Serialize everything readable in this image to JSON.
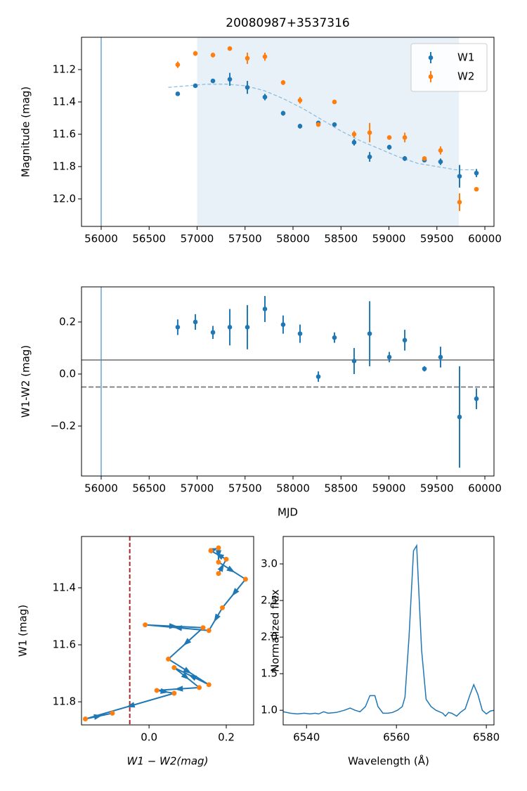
{
  "chart_data": [
    {
      "type": "errorbar",
      "title": "20080987+3537316",
      "ylabel": "Magnitude (mag)",
      "xlim": [
        55795,
        60095
      ],
      "ylim": [
        12.17,
        11.0
      ],
      "xticks": [
        56000,
        56500,
        57000,
        57500,
        58000,
        58500,
        59000,
        59500,
        60000
      ],
      "yticks": [
        11.2,
        11.4,
        11.6,
        11.8,
        {
          "value": 12,
          "label": "12.0"
        }
      ],
      "legend": "upper right",
      "vline": 56000,
      "vline_color": "#1f77b4",
      "span": [
        57000,
        59730
      ],
      "span_color": "#e8f0f8",
      "x": [
        56798,
        56982,
        57165,
        57341,
        57524,
        57707,
        57897,
        58073,
        58264,
        58432,
        58637,
        58799,
        59004,
        59165,
        59370,
        59538,
        59736,
        59912
      ],
      "series": [
        {
          "name": "W1",
          "color": "#1f77b4",
          "values": [
            11.35,
            11.3,
            11.27,
            11.26,
            11.31,
            11.37,
            11.47,
            11.55,
            11.53,
            11.54,
            11.65,
            11.74,
            11.68,
            11.75,
            11.76,
            11.77,
            11.86,
            11.84
          ],
          "errors": [
            0.005,
            0.005,
            0.01,
            0.04,
            0.04,
            0.02,
            0.015,
            0.015,
            0.01,
            0.01,
            0.02,
            0.03,
            0.015,
            0.015,
            0.01,
            0.02,
            0.07,
            0.025
          ]
        },
        {
          "name": "W2",
          "color": "#ff7f0e",
          "values": [
            11.17,
            11.1,
            11.11,
            11.07,
            11.13,
            11.12,
            11.28,
            11.39,
            11.54,
            11.4,
            11.6,
            11.59,
            11.62,
            11.62,
            11.75,
            11.7,
            12.02,
            11.94
          ],
          "errors": [
            0.02,
            0.015,
            0.015,
            0.005,
            0.035,
            0.025,
            0.015,
            0.02,
            0.01,
            0.005,
            0.02,
            0.06,
            0.005,
            0.03,
            0.01,
            0.025,
            0.055,
            0.005
          ]
        }
      ],
      "fit": {
        "color": "#8fbde0",
        "x": [
          56700,
          56900,
          57100,
          57300,
          57500,
          57700,
          57900,
          58100,
          58300,
          58500,
          58700,
          58900,
          59100,
          59300,
          59500,
          59700,
          59900
        ],
        "values": [
          11.31,
          11.3,
          11.29,
          11.29,
          11.3,
          11.33,
          11.38,
          11.44,
          11.51,
          11.58,
          11.64,
          11.69,
          11.74,
          11.78,
          11.8,
          11.82,
          11.82
        ]
      }
    },
    {
      "type": "errorbar",
      "xlabel": "MJD",
      "ylabel": "W1-W2 (mag)",
      "xlim": [
        55795,
        60095
      ],
      "ylim": [
        -0.392,
        0.335
      ],
      "xticks": [
        56000,
        56500,
        57000,
        57500,
        58000,
        58500,
        59000,
        59500,
        60000
      ],
      "yticks": [
        {
          "value": -0.2,
          "label": "−0.2"
        },
        {
          "value": 0,
          "label": "0.0"
        },
        0.2
      ],
      "vline": 56000,
      "vline_color": "#1f77b4",
      "hlines": [
        {
          "value": 0.054,
          "style": "solid",
          "color": "#808080"
        },
        {
          "value": -0.05,
          "style": "dashed",
          "color": "#808080"
        }
      ],
      "x": [
        56798,
        56982,
        57165,
        57341,
        57524,
        57707,
        57897,
        58073,
        58264,
        58432,
        58637,
        58799,
        59004,
        59165,
        59370,
        59538,
        59736,
        59912
      ],
      "series": [
        {
          "color": "#1f77b4",
          "values": [
            0.18,
            0.2,
            0.16,
            0.18,
            0.18,
            0.25,
            0.19,
            0.155,
            -0.01,
            0.14,
            0.05,
            0.155,
            0.065,
            0.13,
            0.02,
            0.065,
            -0.165,
            -0.095
          ],
          "errors": [
            0.03,
            0.03,
            0.025,
            0.07,
            0.085,
            0.05,
            0.035,
            0.035,
            0.02,
            0.02,
            0.05,
            0.125,
            0.02,
            0.04,
            0.01,
            0.04,
            0.195,
            0.04
          ]
        }
      ]
    },
    {
      "type": "track",
      "xlabel": "W1 − W2(mag)",
      "ylabel": "W1 (mag)",
      "xlim": [
        -0.175,
        0.271
      ],
      "ylim": [
        11.881,
        11.22
      ],
      "xticks": [
        {
          "value": 0,
          "label": "0.0"
        },
        0.2
      ],
      "yticks": [
        11.4,
        11.6,
        11.8
      ],
      "vline": -0.05,
      "vline_color": "#a52a2a",
      "vline_style": "dashed",
      "color": "#1f77b4",
      "point_color": "#ff7f0e",
      "x": [
        0.18,
        0.2,
        0.16,
        0.18,
        0.18,
        0.25,
        0.19,
        0.155,
        -0.01,
        0.14,
        0.05,
        0.155,
        0.065,
        0.13,
        0.02,
        0.065,
        -0.165,
        -0.095
      ],
      "values": [
        11.35,
        11.3,
        11.27,
        11.26,
        11.31,
        11.37,
        11.47,
        11.55,
        11.53,
        11.54,
        11.65,
        11.74,
        11.68,
        11.75,
        11.76,
        11.77,
        11.86,
        11.84
      ]
    },
    {
      "type": "line",
      "xlabel": "Wavelength (Å)",
      "ylabel": "Normalized flux",
      "xlim": [
        6534.8,
        6581.7
      ],
      "ylim": [
        0.8,
        3.375
      ],
      "xticks": [
        6540,
        6560,
        6580
      ],
      "yticks": [
        {
          "value": 1,
          "label": "1.0"
        },
        1.5,
        {
          "value": 2,
          "label": "2.0"
        },
        2.5,
        {
          "value": 3,
          "label": "3.0"
        }
      ],
      "color": "#1f77b4",
      "x": [
        6534.8,
        6536.4,
        6538.0,
        6539.5,
        6540.8,
        6541.9,
        6542.7,
        6543.8,
        6544.8,
        6546.6,
        6548.4,
        6549.7,
        6550.8,
        6551.9,
        6553.1,
        6554.1,
        6555.2,
        6555.9,
        6557.0,
        6558.1,
        6559.1,
        6560.2,
        6561.3,
        6561.9,
        6562.8,
        6563.8,
        6564.5,
        6565.6,
        6566.6,
        6567.7,
        6568.8,
        6570.3,
        6570.9,
        6571.6,
        6572.3,
        6573.4,
        6574.2,
        6575.3,
        6576.3,
        6577.2,
        6578.1,
        6579.1,
        6580.0,
        6580.9,
        6581.7
      ],
      "values": [
        0.98,
        0.96,
        0.95,
        0.96,
        0.95,
        0.96,
        0.95,
        0.98,
        0.96,
        0.97,
        1.0,
        1.03,
        1.0,
        0.98,
        1.05,
        1.2,
        1.2,
        1.05,
        0.96,
        0.96,
        0.97,
        1.0,
        1.05,
        1.18,
        2.0,
        3.18,
        3.25,
        1.82,
        1.15,
        1.05,
        1.0,
        0.96,
        0.92,
        0.97,
        0.96,
        0.92,
        0.97,
        1.02,
        1.2,
        1.35,
        1.22,
        1.0,
        0.95,
        0.99,
        1.0
      ]
    }
  ]
}
